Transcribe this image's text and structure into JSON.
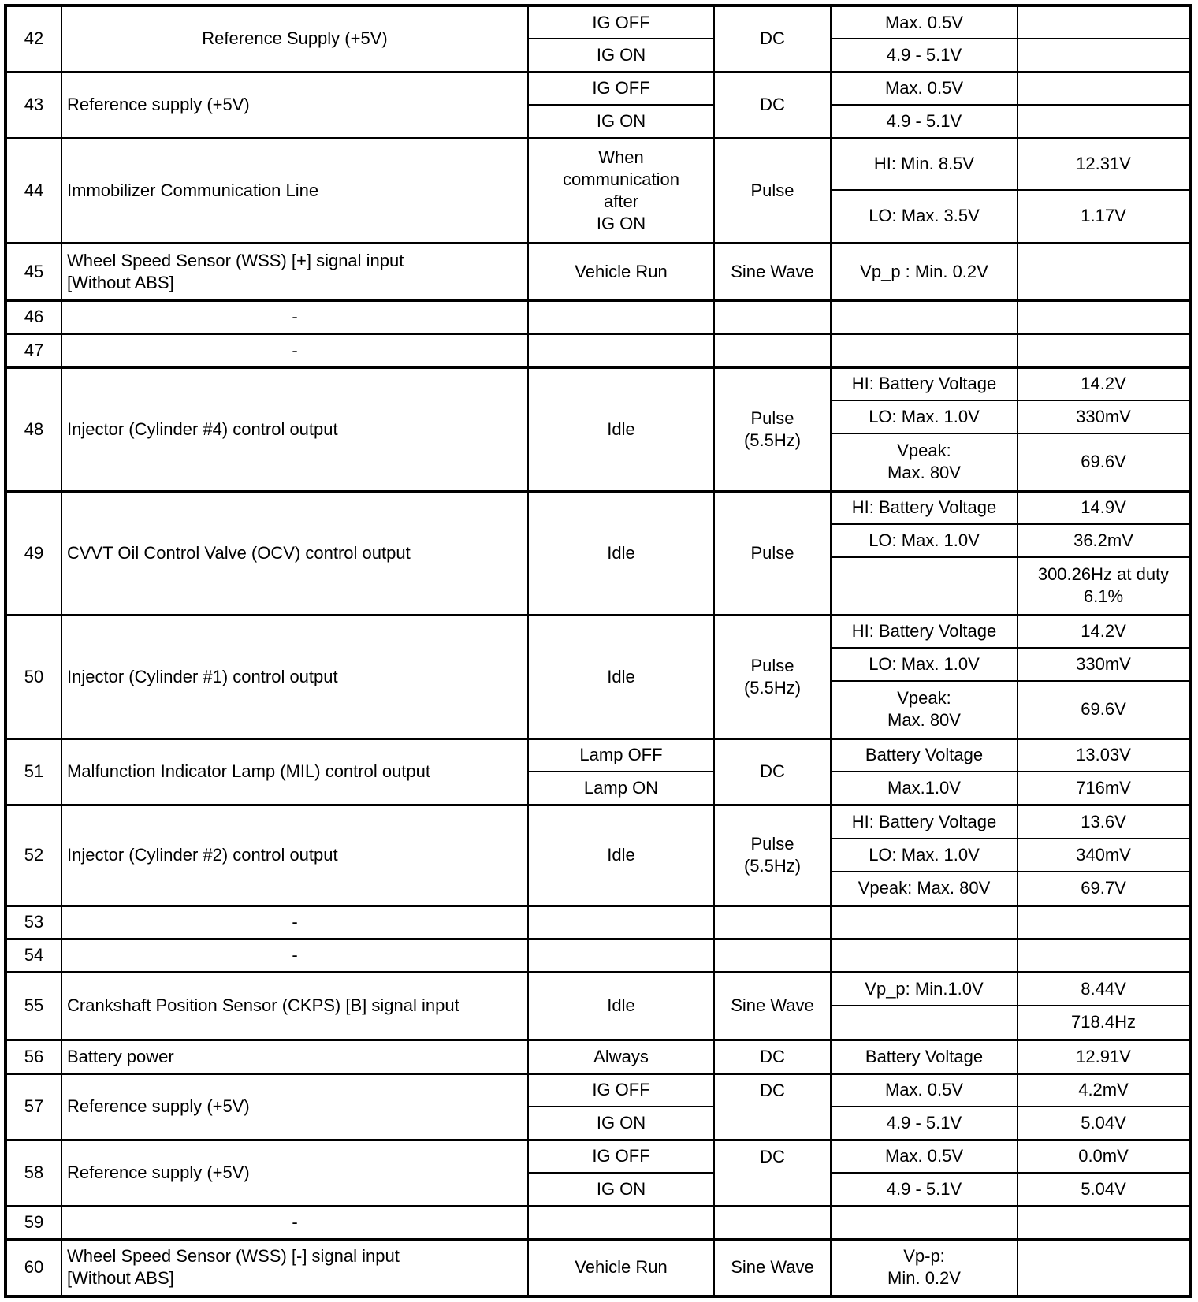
{
  "table": {
    "rows": [
      {
        "pin": "42",
        "name": "Reference Supply (+5V)",
        "name_align": "center",
        "condition": [
          {
            "text": "IG OFF",
            "span": 1
          },
          {
            "text": "IG ON",
            "span": 1
          }
        ],
        "type": [
          {
            "text": "DC",
            "span": 2
          }
        ],
        "spec": [
          {
            "text": "Max. 0.5V",
            "span": 1
          },
          {
            "text": "4.9 - 5.1V",
            "span": 1
          }
        ],
        "measured": [
          {
            "text": "",
            "span": 1
          },
          {
            "text": "",
            "span": 1
          }
        ]
      },
      {
        "pin": "43",
        "name": "Reference supply (+5V)",
        "condition": [
          {
            "text": "IG OFF",
            "span": 1
          },
          {
            "text": "IG ON",
            "span": 1
          }
        ],
        "type": [
          {
            "text": "DC",
            "span": 2
          }
        ],
        "spec": [
          {
            "text": "Max. 0.5V",
            "span": 1
          },
          {
            "text": "4.9 - 5.1V",
            "span": 1
          }
        ],
        "measured": [
          {
            "text": "",
            "span": 1
          },
          {
            "text": "",
            "span": 1
          }
        ]
      },
      {
        "pin": "44",
        "name": "Immobilizer Communication Line",
        "condition": [
          {
            "text": "When\ncommunication\nafter\nIG ON",
            "span": 2
          }
        ],
        "type": [
          {
            "text": "Pulse",
            "span": 2
          }
        ],
        "spec": [
          {
            "text": "HI: Min. 8.5V",
            "span": 1
          },
          {
            "text": "LO: Max. 3.5V",
            "span": 1
          }
        ],
        "measured": [
          {
            "text": "12.31V",
            "span": 1
          },
          {
            "text": "1.17V",
            "span": 1
          }
        ]
      },
      {
        "pin": "45",
        "name": "Wheel Speed Sensor (WSS) [+] signal input\n[Without ABS]",
        "condition": [
          {
            "text": "Vehicle Run",
            "span": 1
          }
        ],
        "type": [
          {
            "text": "Sine Wave",
            "span": 1
          }
        ],
        "spec": [
          {
            "text": "Vp_p : Min. 0.2V",
            "span": 1
          }
        ],
        "measured": [
          {
            "text": "",
            "span": 1
          }
        ]
      },
      {
        "pin": "46",
        "name": "-",
        "name_align": "center",
        "condition": [
          {
            "text": "",
            "span": 1
          }
        ],
        "type": [
          {
            "text": "",
            "span": 1
          }
        ],
        "spec": [
          {
            "text": "",
            "span": 1
          }
        ],
        "measured": [
          {
            "text": "",
            "span": 1
          }
        ]
      },
      {
        "pin": "47",
        "name": "-",
        "name_align": "center",
        "condition": [
          {
            "text": "",
            "span": 1
          }
        ],
        "type": [
          {
            "text": "",
            "span": 1
          }
        ],
        "spec": [
          {
            "text": "",
            "span": 1
          }
        ],
        "measured": [
          {
            "text": "",
            "span": 1
          }
        ]
      },
      {
        "pin": "48",
        "name": "Injector (Cylinder #4) control output",
        "condition": [
          {
            "text": "Idle",
            "span": 3
          }
        ],
        "type": [
          {
            "text": "Pulse\n(5.5Hz)",
            "span": 3
          }
        ],
        "spec": [
          {
            "text": "HI: Battery Voltage",
            "span": 1
          },
          {
            "text": "LO: Max. 1.0V",
            "span": 1
          },
          {
            "text": "Vpeak:\nMax. 80V",
            "span": 1
          }
        ],
        "measured": [
          {
            "text": "14.2V",
            "span": 1
          },
          {
            "text": "330mV",
            "span": 1
          },
          {
            "text": "69.6V",
            "span": 1
          }
        ]
      },
      {
        "pin": "49",
        "name": "CVVT Oil Control Valve (OCV) control output",
        "condition": [
          {
            "text": "Idle",
            "span": 3
          }
        ],
        "type": [
          {
            "text": "Pulse",
            "span": 3
          }
        ],
        "spec": [
          {
            "text": "HI: Battery Voltage",
            "span": 1
          },
          {
            "text": "LO: Max. 1.0V",
            "span": 1
          },
          {
            "text": "",
            "span": 1
          }
        ],
        "measured": [
          {
            "text": "14.9V",
            "span": 1
          },
          {
            "text": "36.2mV",
            "span": 1
          },
          {
            "text": "300.26Hz at duty\n6.1%",
            "span": 1
          }
        ]
      },
      {
        "pin": "50",
        "name": "Injector (Cylinder #1) control output",
        "condition": [
          {
            "text": "Idle",
            "span": 3
          }
        ],
        "type": [
          {
            "text": "Pulse\n(5.5Hz)",
            "span": 3
          }
        ],
        "spec": [
          {
            "text": "HI: Battery Voltage",
            "span": 1
          },
          {
            "text": "LO: Max. 1.0V",
            "span": 1
          },
          {
            "text": "Vpeak:\nMax. 80V",
            "span": 1
          }
        ],
        "measured": [
          {
            "text": "14.2V",
            "span": 1
          },
          {
            "text": "330mV",
            "span": 1
          },
          {
            "text": "69.6V",
            "span": 1
          }
        ]
      },
      {
        "pin": "51",
        "name": "Malfunction Indicator Lamp (MIL) control output",
        "condition": [
          {
            "text": "Lamp OFF",
            "span": 1
          },
          {
            "text": "Lamp ON",
            "span": 1
          }
        ],
        "type": [
          {
            "text": "DC",
            "span": 2
          }
        ],
        "spec": [
          {
            "text": "Battery Voltage",
            "span": 1
          },
          {
            "text": "Max.1.0V",
            "span": 1
          }
        ],
        "measured": [
          {
            "text": "13.03V",
            "span": 1
          },
          {
            "text": "716mV",
            "span": 1
          }
        ]
      },
      {
        "pin": "52",
        "name": "Injector (Cylinder #2) control output",
        "condition": [
          {
            "text": "Idle",
            "span": 3
          }
        ],
        "type": [
          {
            "text": "Pulse\n(5.5Hz)",
            "span": 3
          }
        ],
        "spec": [
          {
            "text": "HI: Battery Voltage",
            "span": 1
          },
          {
            "text": "LO: Max. 1.0V",
            "span": 1
          },
          {
            "text": "Vpeak: Max. 80V",
            "span": 1
          }
        ],
        "measured": [
          {
            "text": "13.6V",
            "span": 1
          },
          {
            "text": "340mV",
            "span": 1
          },
          {
            "text": "69.7V",
            "span": 1
          }
        ]
      },
      {
        "pin": "53",
        "name": "-",
        "name_align": "center",
        "condition": [
          {
            "text": "",
            "span": 1
          }
        ],
        "type": [
          {
            "text": "",
            "span": 1
          }
        ],
        "spec": [
          {
            "text": "",
            "span": 1
          }
        ],
        "measured": [
          {
            "text": "",
            "span": 1
          }
        ]
      },
      {
        "pin": "54",
        "name": "-",
        "name_align": "center",
        "condition": [
          {
            "text": "",
            "span": 1
          }
        ],
        "type": [
          {
            "text": "",
            "span": 1
          }
        ],
        "spec": [
          {
            "text": "",
            "span": 1
          }
        ],
        "measured": [
          {
            "text": "",
            "span": 1
          }
        ]
      },
      {
        "pin": "55",
        "name": "Crankshaft Position Sensor (CKPS) [B] signal input",
        "condition": [
          {
            "text": "Idle",
            "span": 2
          }
        ],
        "type": [
          {
            "text": "Sine Wave",
            "span": 2
          }
        ],
        "spec": [
          {
            "text": "Vp_p: Min.1.0V",
            "span": 1
          },
          {
            "text": "",
            "span": 1
          }
        ],
        "measured": [
          {
            "text": "8.44V",
            "span": 1
          },
          {
            "text": "718.4Hz",
            "span": 1
          }
        ]
      },
      {
        "pin": "56",
        "name": "Battery power",
        "condition": [
          {
            "text": "Always",
            "span": 1
          }
        ],
        "type": [
          {
            "text": "DC",
            "span": 1
          }
        ],
        "spec": [
          {
            "text": "Battery Voltage",
            "span": 1
          }
        ],
        "measured": [
          {
            "text": "12.91V",
            "span": 1
          }
        ]
      },
      {
        "pin": "57",
        "name": "Reference supply (+5V)",
        "condition": [
          {
            "text": "IG OFF",
            "span": 1
          },
          {
            "text": "IG ON",
            "span": 1
          }
        ],
        "type": [
          {
            "text": "DC",
            "span": 2,
            "align": "top"
          }
        ],
        "spec": [
          {
            "text": "Max. 0.5V",
            "span": 1
          },
          {
            "text": "4.9 - 5.1V",
            "span": 1
          }
        ],
        "measured": [
          {
            "text": "4.2mV",
            "span": 1
          },
          {
            "text": "5.04V",
            "span": 1
          }
        ]
      },
      {
        "pin": "58",
        "name": "Reference supply (+5V)",
        "condition": [
          {
            "text": "IG OFF",
            "span": 1
          },
          {
            "text": "IG ON",
            "span": 1
          }
        ],
        "type": [
          {
            "text": "DC",
            "span": 2,
            "align": "top"
          }
        ],
        "spec": [
          {
            "text": "Max. 0.5V",
            "span": 1
          },
          {
            "text": "4.9 - 5.1V",
            "span": 1
          }
        ],
        "measured": [
          {
            "text": "0.0mV",
            "span": 1
          },
          {
            "text": "5.04V",
            "span": 1
          }
        ]
      },
      {
        "pin": "59",
        "name": "-",
        "name_align": "center",
        "condition": [
          {
            "text": "",
            "span": 1
          }
        ],
        "type": [
          {
            "text": "",
            "span": 1
          }
        ],
        "spec": [
          {
            "text": "",
            "span": 1
          }
        ],
        "measured": [
          {
            "text": "",
            "span": 1
          }
        ]
      },
      {
        "pin": "60",
        "name": "Wheel Speed Sensor (WSS) [-] signal input\n[Without ABS]",
        "condition": [
          {
            "text": "Vehicle Run",
            "span": 1
          }
        ],
        "type": [
          {
            "text": "Sine Wave",
            "span": 1
          }
        ],
        "spec": [
          {
            "text": "Vp-p:\nMin. 0.2V",
            "span": 1
          }
        ],
        "measured": [
          {
            "text": "",
            "span": 1
          }
        ]
      }
    ]
  }
}
